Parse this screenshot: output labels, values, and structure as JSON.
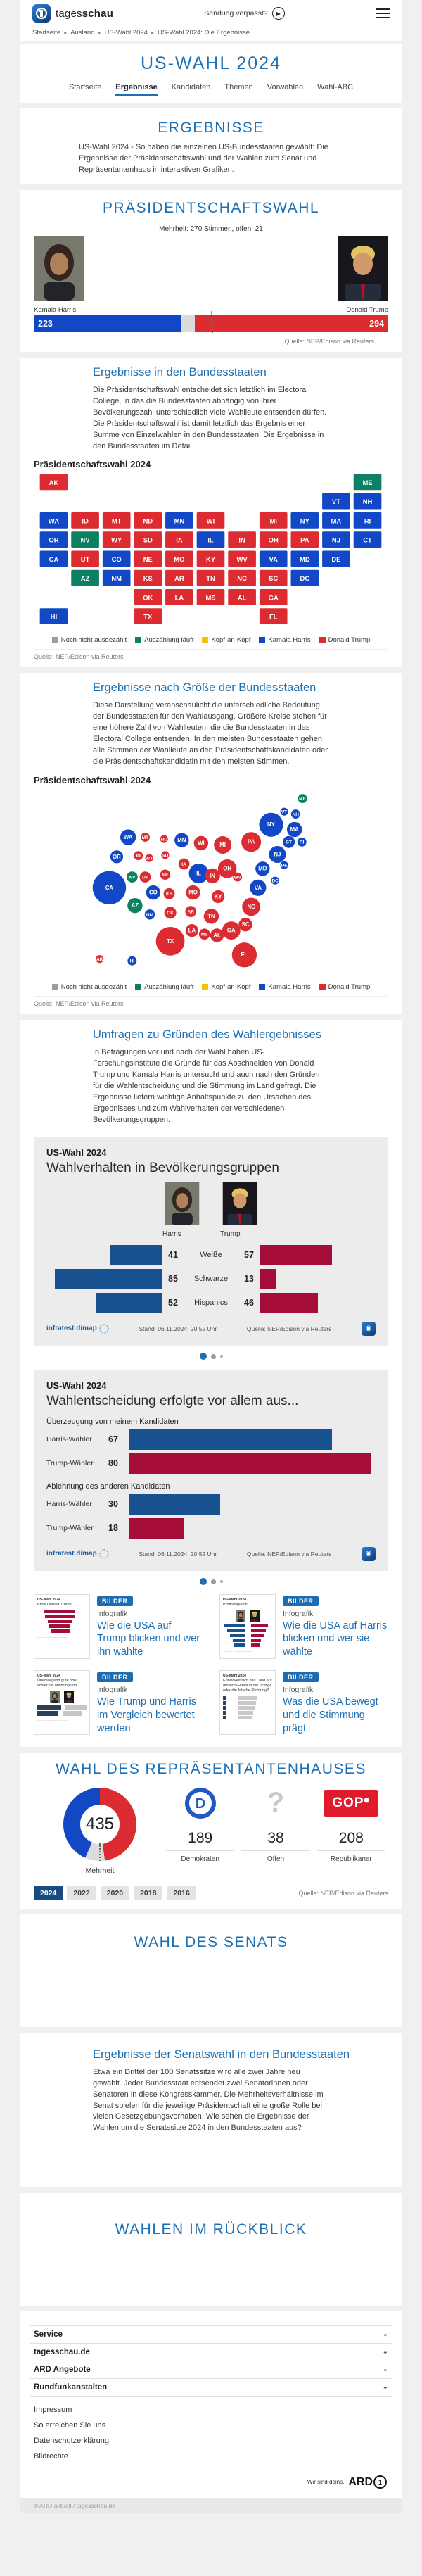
{
  "header": {
    "brand_light": "tages",
    "brand_bold": "schau",
    "missed": "Sendung verpasst?",
    "breadcrumb": [
      "Startseite",
      "Ausland",
      "US-Wahl 2024",
      "US-Wahl 2024: Die Ergebnisse"
    ]
  },
  "nav": {
    "title": "US-WAHL 2024",
    "tabs": [
      {
        "label": "Startseite",
        "active": false
      },
      {
        "label": "Ergebnisse",
        "active": true
      },
      {
        "label": "Kandidaten",
        "active": false
      },
      {
        "label": "Themen",
        "active": false
      },
      {
        "label": "Vorwahlen",
        "active": false
      },
      {
        "label": "Wahl-ABC",
        "active": false
      }
    ]
  },
  "intro": {
    "heading": "ERGEBNISSE",
    "text": "US-Wahl 2024 - So haben die einzelnen US-Bundesstaaten gewählt: Die Ergebnisse der Präsidentschaftswahl und der Wahlen zum Senat und Repräsentantenhaus in interaktiven Grafiken."
  },
  "president": {
    "heading": "PRÄSIDENTSCHAFTSWAHL",
    "majority": "Mehrheit: 270 Stimmen, offen: 21",
    "harris": {
      "name": "Kamala Harris",
      "votes": 223
    },
    "trump": {
      "name": "Donald Trump",
      "votes": 294
    },
    "open": 21,
    "total": 538,
    "majority_votes": 270,
    "source": "Quelle: NEP/Edison via Reuters"
  },
  "legend": [
    {
      "label": "Noch nicht ausgezählt",
      "color": "#9d9d9d"
    },
    {
      "label": "Auszählung läuft",
      "color": "#0d7f63"
    },
    {
      "label": "Kopf-an-Kopf",
      "color": "#ecc400"
    },
    {
      "label": "Kamala Harris",
      "color": "#1247c5"
    },
    {
      "label": "Donald Trump",
      "color": "#dc2b31"
    }
  ],
  "states_map": {
    "heading": "Ergebnisse in den Bundesstaaten",
    "text": "Die Präsidentschaftswahl entscheidet sich letztlich im Electoral College, in das die Bundesstaaten abhängig von ihrer Bevölkerungszahl unterschiedlich viele Wahlleute entsenden dürfen. Die Präsidentschaftswahl ist damit letztlich das Ergebnis einer Summe von Einzelwahlen in den Bundesstaaten. Die Ergebnisse in den Bundesstaaten im Detail.",
    "chart_label": "Präsidentschaftswahl 2024",
    "source": "Quelle: NEP/Edison via Reuters"
  },
  "bubble_map": {
    "heading": "Ergebnisse nach Größe der Bundesstaaten",
    "text": "Diese Darstellung veranschaulicht die unterschiedliche Bedeutung der Bundesstaaten für den Wahlausgang. Größere Kreise stehen für eine höhere Zahl von Wahlleuten, die die Bundesstaaten in das Electoral College entsenden. In den meisten Bundesstaaten gehen alle Stimmen der Wahlleute an den Präsidentschaftskandidaten oder die Präsidentschaftskandidatin mit den meisten Stimmen.",
    "chart_label": "Präsidentschaftswahl 2024",
    "source": "Quelle: NEP/Edison via Reuters"
  },
  "states": [
    {
      "id": "AK",
      "winner": "T",
      "ev": 3,
      "tile": [
        0,
        0
      ],
      "bubble": [
        54,
        292
      ]
    },
    {
      "id": "ME",
      "winner": "C",
      "ev": 4,
      "tile": [
        10,
        0
      ],
      "bubble": [
        410,
        22
      ]
    },
    {
      "id": "VT",
      "winner": "H",
      "ev": 3,
      "tile": [
        9,
        1
      ],
      "bubble": [
        378,
        44
      ]
    },
    {
      "id": "NH",
      "winner": "H",
      "ev": 4,
      "tile": [
        10,
        1
      ],
      "bubble": [
        398,
        48
      ]
    },
    {
      "id": "WA",
      "winner": "H",
      "ev": 12,
      "tile": [
        0,
        2
      ],
      "bubble": [
        104,
        87
      ]
    },
    {
      "id": "ID",
      "winner": "T",
      "ev": 4,
      "tile": [
        1,
        2
      ],
      "bubble": [
        122,
        118
      ]
    },
    {
      "id": "MT",
      "winner": "T",
      "ev": 4,
      "tile": [
        2,
        2
      ],
      "bubble": [
        134,
        87
      ]
    },
    {
      "id": "ND",
      "winner": "T",
      "ev": 3,
      "tile": [
        3,
        2
      ],
      "bubble": [
        167,
        90
      ]
    },
    {
      "id": "MN",
      "winner": "H",
      "ev": 10,
      "tile": [
        4,
        2
      ],
      "bubble": [
        198,
        92
      ]
    },
    {
      "id": "WI",
      "winner": "T",
      "ev": 10,
      "tile": [
        5,
        2
      ],
      "bubble": [
        232,
        97
      ]
    },
    {
      "id": "MI",
      "winner": "T",
      "ev": 15,
      "tile": [
        7,
        2
      ],
      "bubble": [
        270,
        100
      ]
    },
    {
      "id": "NY",
      "winner": "H",
      "ev": 28,
      "tile": [
        8,
        2
      ],
      "bubble": [
        355,
        66
      ]
    },
    {
      "id": "MA",
      "winner": "H",
      "ev": 11,
      "tile": [
        9,
        2
      ],
      "bubble": [
        396,
        74
      ]
    },
    {
      "id": "RI",
      "winner": "H",
      "ev": 4,
      "tile": [
        10,
        2
      ],
      "bubble": [
        409,
        95
      ]
    },
    {
      "id": "OR",
      "winner": "H",
      "ev": 8,
      "tile": [
        0,
        3
      ],
      "bubble": [
        84,
        120
      ]
    },
    {
      "id": "NV",
      "winner": "C",
      "ev": 6,
      "tile": [
        1,
        3
      ],
      "bubble": [
        111,
        154
      ]
    },
    {
      "id": "WY",
      "winner": "T",
      "ev": 3,
      "tile": [
        2,
        3
      ],
      "bubble": [
        141,
        122
      ]
    },
    {
      "id": "SD",
      "winner": "T",
      "ev": 3,
      "tile": [
        3,
        3
      ],
      "bubble": [
        169,
        117
      ]
    },
    {
      "id": "IA",
      "winner": "T",
      "ev": 6,
      "tile": [
        4,
        3
      ],
      "bubble": [
        202,
        132
      ]
    },
    {
      "id": "IL",
      "winner": "H",
      "ev": 19,
      "tile": [
        5,
        3
      ],
      "bubble": [
        228,
        148
      ]
    },
    {
      "id": "IN",
      "winner": "T",
      "ev": 11,
      "tile": [
        6,
        3
      ],
      "bubble": [
        252,
        152
      ]
    },
    {
      "id": "OH",
      "winner": "T",
      "ev": 17,
      "tile": [
        7,
        3
      ],
      "bubble": [
        278,
        140
      ]
    },
    {
      "id": "PA",
      "winner": "T",
      "ev": 19,
      "tile": [
        8,
        3
      ],
      "bubble": [
        320,
        95
      ]
    },
    {
      "id": "NJ",
      "winner": "H",
      "ev": 14,
      "tile": [
        9,
        3
      ],
      "bubble": [
        366,
        116
      ]
    },
    {
      "id": "CT",
      "winner": "H",
      "ev": 7,
      "tile": [
        10,
        3
      ],
      "bubble": [
        386,
        95
      ]
    },
    {
      "id": "CA",
      "winner": "H",
      "ev": 54,
      "tile": [
        0,
        4
      ],
      "bubble": [
        71,
        172
      ]
    },
    {
      "id": "UT",
      "winner": "T",
      "ev": 6,
      "tile": [
        1,
        4
      ],
      "bubble": [
        134,
        154
      ]
    },
    {
      "id": "CO",
      "winner": "H",
      "ev": 10,
      "tile": [
        2,
        4
      ],
      "bubble": [
        148,
        180
      ]
    },
    {
      "id": "NE",
      "winner": "T",
      "ev": 5,
      "tile": [
        3,
        4
      ],
      "bubble": [
        169,
        150
      ]
    },
    {
      "id": "MO",
      "winner": "T",
      "ev": 10,
      "tile": [
        4,
        4
      ],
      "bubble": [
        218,
        180
      ]
    },
    {
      "id": "KY",
      "winner": "T",
      "ev": 8,
      "tile": [
        5,
        4
      ],
      "bubble": [
        262,
        187
      ]
    },
    {
      "id": "WV",
      "winner": "T",
      "ev": 4,
      "tile": [
        6,
        4
      ],
      "bubble": [
        296,
        154
      ]
    },
    {
      "id": "VA",
      "winner": "H",
      "ev": 13,
      "tile": [
        7,
        4
      ],
      "bubble": [
        332,
        172
      ]
    },
    {
      "id": "MD",
      "winner": "H",
      "ev": 10,
      "tile": [
        8,
        4
      ],
      "bubble": [
        340,
        140
      ]
    },
    {
      "id": "DE",
      "winner": "H",
      "ev": 3,
      "tile": [
        9,
        4
      ],
      "bubble": [
        378,
        134
      ]
    },
    {
      "id": "AZ",
      "winner": "C",
      "ev": 11,
      "tile": [
        1,
        5
      ],
      "bubble": [
        116,
        202
      ]
    },
    {
      "id": "NM",
      "winner": "H",
      "ev": 5,
      "tile": [
        2,
        5
      ],
      "bubble": [
        142,
        217
      ]
    },
    {
      "id": "KS",
      "winner": "T",
      "ev": 6,
      "tile": [
        3,
        5
      ],
      "bubble": [
        176,
        182
      ]
    },
    {
      "id": "AR",
      "winner": "T",
      "ev": 6,
      "tile": [
        4,
        5
      ],
      "bubble": [
        214,
        212
      ]
    },
    {
      "id": "TN",
      "winner": "T",
      "ev": 11,
      "tile": [
        5,
        5
      ],
      "bubble": [
        250,
        220
      ]
    },
    {
      "id": "NC",
      "winner": "T",
      "ev": 16,
      "tile": [
        6,
        5
      ],
      "bubble": [
        320,
        204
      ]
    },
    {
      "id": "SC",
      "winner": "T",
      "ev": 9,
      "tile": [
        7,
        5
      ],
      "bubble": [
        310,
        234
      ]
    },
    {
      "id": "DC",
      "winner": "H",
      "ev": 3,
      "tile": [
        8,
        5
      ],
      "bubble": [
        362,
        160
      ]
    },
    {
      "id": "OK",
      "winner": "T",
      "ev": 7,
      "tile": [
        3,
        6
      ],
      "bubble": [
        178,
        214
      ]
    },
    {
      "id": "LA",
      "winner": "T",
      "ev": 8,
      "tile": [
        4,
        6
      ],
      "bubble": [
        216,
        244
      ]
    },
    {
      "id": "MS",
      "winner": "T",
      "ev": 6,
      "tile": [
        5,
        6
      ],
      "bubble": [
        238,
        250
      ]
    },
    {
      "id": "AL",
      "winner": "T",
      "ev": 9,
      "tile": [
        6,
        6
      ],
      "bubble": [
        260,
        252
      ]
    },
    {
      "id": "GA",
      "winner": "T",
      "ev": 16,
      "tile": [
        7,
        6
      ],
      "bubble": [
        285,
        244
      ]
    },
    {
      "id": "HI",
      "winner": "H",
      "ev": 4,
      "tile": [
        0,
        7
      ],
      "bubble": [
        111,
        295
      ]
    },
    {
      "id": "TX",
      "winner": "T",
      "ev": 40,
      "tile": [
        3,
        7
      ],
      "bubble": [
        178,
        262
      ]
    },
    {
      "id": "FL",
      "winner": "T",
      "ev": 30,
      "tile": [
        7,
        7
      ],
      "bubble": [
        308,
        285
      ]
    }
  ],
  "polls": {
    "heading": "Umfragen zu Gründen des Wahlergebnisses",
    "text": "In Befragungen vor und nach der Wahl haben US-Forschungsinstitute die Gründe für das Abschneiden von Donald Trump und Kamala Harris untersucht und auch nach den Gründen für die Wahlentscheidung und die Stimmung im Land gefragt. Die Ergebnisse liefern wichtige Anhaltspunkte zu den Ursachen des Ergebnisses und zum Wahlverhalten der verschiedenen Bevölkerungsgruppen."
  },
  "card1": {
    "kicker": "US-Wahl 2024",
    "title": "Wahlverhalten in Bevölkerungsgruppen",
    "left_label": "Harris",
    "right_label": "Trump",
    "rows": [
      {
        "category": "Weiße",
        "harris": 41,
        "trump": 57
      },
      {
        "category": "Schwarze",
        "harris": 85,
        "trump": 13
      },
      {
        "category": "Hispanics",
        "harris": 52,
        "trump": 46
      }
    ],
    "brand": "infratest dimap",
    "stand": "Stand:  06.11.2024, 20:52 Uhr",
    "source": "Quelle: NEP/Edison via Reuters"
  },
  "card2": {
    "kicker": "US-Wahl 2024",
    "title": "Wahlentscheidung erfolgte vor allem aus...",
    "groups": [
      {
        "label": "Überzeugung von meinem Kandidaten",
        "rows": [
          {
            "label": "Harris-Wähler",
            "value": 67,
            "party": "H"
          },
          {
            "label": "Trump-Wähler",
            "value": 80,
            "party": "T"
          }
        ]
      },
      {
        "label": "Ablehnung des anderen Kandidaten",
        "rows": [
          {
            "label": "Harris-Wähler",
            "value": 30,
            "party": "H"
          },
          {
            "label": "Trump-Wähler",
            "value": 18,
            "party": "T"
          }
        ]
      }
    ],
    "brand": "infratest dimap",
    "stand": "Stand:  06.11.2024, 20:52 Uhr",
    "source": "Quelle: NEP/Edison via Reuters"
  },
  "teasers": [
    {
      "badge": "BILDER",
      "kicker": "Infografik",
      "title": "Wie die USA auf Trump blicken und wer ihn wählte",
      "thumb_kicker": "US-Wahl 2024",
      "thumb_title": "Profil Donald Trump",
      "type": "bars",
      "thumb_bars": [
        76,
        70,
        58,
        50,
        44
      ]
    },
    {
      "badge": "BILDER",
      "kicker": "Infografik",
      "title": "Wie die USA auf Harris blicken und wer sie wählte",
      "thumb_kicker": "US-Wahl 2024",
      "thumb_title": "Profilvergleich",
      "type": "compare",
      "thumb_bars": [
        30,
        26,
        22,
        18,
        16
      ]
    },
    {
      "badge": "BILDER",
      "kicker": "Infografik",
      "title": "Wie Trump und Harris im Vergleich bewertet werden",
      "thumb_kicker": "US-Wahl 2024",
      "thumb_title": "Überwiegend gute oder schlechte Meinung von...",
      "type": "faces",
      "thumb_bars": [
        34,
        30
      ]
    },
    {
      "badge": "BILDER",
      "kicker": "Infografik",
      "title": "Was die USA bewegt und die Stimmung prägt",
      "thumb_kicker": "US-Wahl 2024",
      "thumb_title": "Entwickelt sich das Land auf diesem Gebiet in die richtige oder die falsche Richtung?",
      "type": "list",
      "thumb_bars": [
        28,
        26,
        24,
        22,
        20
      ]
    }
  ],
  "house": {
    "heading": "WAHL DES REPRÄSENTANTENHAUSES",
    "total": 435,
    "center_label": "Mehrheit",
    "parties": [
      {
        "name": "Demokraten",
        "seats": 189,
        "logo": "D"
      },
      {
        "name": "Offen",
        "seats": 38,
        "logo": "?"
      },
      {
        "name": "Republikaner",
        "seats": 208,
        "logo": "GOP"
      }
    ],
    "years": [
      "2024",
      "2022",
      "2020",
      "2018",
      "2016"
    ],
    "active_year": "2024",
    "source": "Quelle: NEP/Edison via Reuters"
  },
  "senate": {
    "heading": "WAHL DES SENATS"
  },
  "senate_results": {
    "heading": "Ergebnisse der Senatswahl in den Bundesstaaten",
    "text": "Etwa ein Drittel der 100 Senatssitze wird alle zwei Jahre neu gewählt. Jeder Bundesstaat entsendet zwei Senatorinnen oder Senatoren in diese Kongresskammer. Die Mehrheitsverhältnisse im Senat spielen für die jeweilige Präsidentschaft eine große Rolle bei vielen Gesetzgebungsvorhaben. Wie sehen die Ergebnisse der Wahlen um die Senatssitze 2024 in den Bundesstaaten aus?"
  },
  "retro": {
    "heading": "WAHLEN IM RÜCKBLICK"
  },
  "footer": {
    "accordions": [
      "Service",
      "tagesschau.de",
      "ARD Angebote",
      "Rundfunkanstalten"
    ],
    "links": [
      "Impressum",
      "So erreichen Sie uns",
      "Datenschutzerklärung",
      "Bildrechte"
    ],
    "ard_claim": "Wir sind deins.",
    "ard_brand": "ARD",
    "copyright": "© ARD-aktuell / tagesschau.de"
  },
  "colors": {
    "harris_blue": "#1247c5",
    "trump_red": "#dc2b31",
    "counting_green": "#0d7f63",
    "tossup_yellow": "#ecc400",
    "uncounted_gray": "#9d9d9d",
    "open_gray": "#dcdcdc",
    "card_blue": "#17518f",
    "card_red": "#a60d39",
    "accent_blue": "#1d70b4",
    "dem_logo_blue": "#1f5ac0",
    "gop_red": "#e01b2c"
  }
}
